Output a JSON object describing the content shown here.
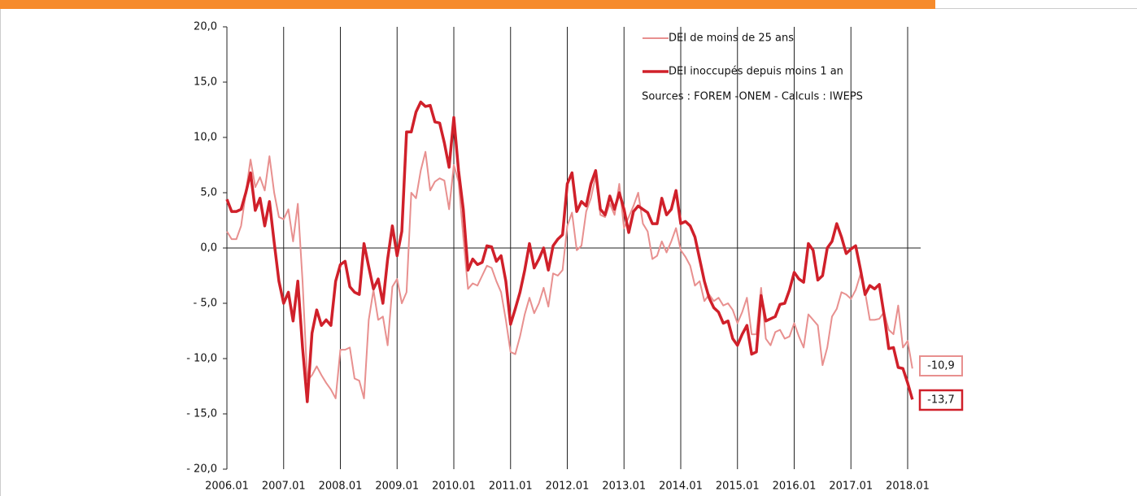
{
  "chart_data": {
    "type": "line",
    "categories": [
      "2006.01",
      null,
      null,
      null,
      null,
      null,
      null,
      null,
      null,
      null,
      null,
      null,
      "2007.01",
      null,
      null,
      null,
      null,
      null,
      null,
      null,
      null,
      null,
      null,
      null,
      "2008.01",
      null,
      null,
      null,
      null,
      null,
      null,
      null,
      null,
      null,
      null,
      null,
      "2009.01",
      null,
      null,
      null,
      null,
      null,
      null,
      null,
      null,
      null,
      null,
      null,
      "2010.01",
      null,
      null,
      null,
      null,
      null,
      null,
      null,
      null,
      null,
      null,
      null,
      "2011.01",
      null,
      null,
      null,
      null,
      null,
      null,
      null,
      null,
      null,
      null,
      null,
      "2012.01",
      null,
      null,
      null,
      null,
      null,
      null,
      null,
      null,
      null,
      null,
      null,
      "2013.01",
      null,
      null,
      null,
      null,
      null,
      null,
      null,
      null,
      null,
      null,
      null,
      "2014.01",
      null,
      null,
      null,
      null,
      null,
      null,
      null,
      null,
      null,
      null,
      null,
      "2015.01",
      null,
      null,
      null,
      null,
      null,
      null,
      null,
      null,
      null,
      null,
      null,
      "2016.01",
      null,
      null,
      null,
      null,
      null,
      null,
      null,
      null,
      null,
      null,
      null,
      "2017.01",
      null,
      null,
      null,
      null,
      null,
      null,
      null,
      null,
      null,
      null,
      null,
      "2018.01",
      null
    ],
    "series": [
      {
        "name": "DEI de moins de 25 ans",
        "color": "#e8908f",
        "width": 2,
        "values": [
          1.5,
          0.8,
          0.8,
          2.0,
          5.0,
          8.0,
          5.5,
          6.4,
          5.2,
          8.3,
          5.0,
          2.8,
          2.6,
          3.5,
          0.6,
          4.0,
          -3.0,
          -12.0,
          -11.5,
          -10.7,
          -11.5,
          -12.2,
          -12.8,
          -13.6,
          -9.2,
          -9.2,
          -9.0,
          -11.8,
          -12.0,
          -13.6,
          -6.5,
          -3.8,
          -6.5,
          -6.2,
          -8.8,
          -3.5,
          -2.8,
          -5.0,
          -4.0,
          5.0,
          4.5,
          7.0,
          8.7,
          5.2,
          6.0,
          6.3,
          6.1,
          3.5,
          7.5,
          6.0,
          1.0,
          -3.7,
          -3.2,
          -3.4,
          -2.5,
          -1.6,
          -1.8,
          -3.0,
          -4.0,
          -6.5,
          -9.4,
          -9.6,
          -8.0,
          -6.0,
          -4.5,
          -5.9,
          -5.0,
          -3.6,
          -5.3,
          -2.3,
          -2.5,
          -2.0,
          2.0,
          3.2,
          -0.2,
          0.2,
          3.3,
          4.5,
          6.5,
          3.0,
          2.8,
          4.0,
          3.0,
          5.8,
          1.8,
          2.8,
          3.8,
          5.0,
          2.2,
          1.5,
          -1.0,
          -0.7,
          0.6,
          -0.4,
          0.6,
          1.8,
          -0.2,
          -0.8,
          -1.6,
          -3.4,
          -3.0,
          -4.8,
          -4.2,
          -4.8,
          -4.5,
          -5.2,
          -5.0,
          -5.6,
          -6.8,
          -5.8,
          -4.5,
          -7.8,
          -7.8,
          -3.6,
          -8.2,
          -8.8,
          -7.6,
          -7.4,
          -8.2,
          -8.0,
          -6.8,
          -8.0,
          -9.0,
          -6.0,
          -6.5,
          -7.0,
          -10.6,
          -9.0,
          -6.2,
          -5.5,
          -4.0,
          -4.2,
          -4.6,
          -3.8,
          -2.4,
          -4.0,
          -6.5,
          -6.5,
          -6.4,
          -5.8,
          -7.4,
          -7.8,
          -5.2,
          -9.0,
          -8.4,
          -10.9
        ],
        "value_labels": [
          null,
          null,
          null,
          null,
          null,
          null,
          null,
          null,
          null,
          null,
          null,
          null,
          null,
          null,
          null,
          null,
          null,
          null,
          null,
          null,
          null,
          null,
          null,
          null,
          null,
          null,
          null,
          null,
          null,
          null,
          null,
          null,
          null,
          null,
          null,
          null,
          null,
          null,
          null,
          null,
          null,
          null,
          null,
          null,
          null,
          null,
          null,
          null,
          null,
          null,
          null,
          null,
          null,
          null,
          null,
          null,
          null,
          null,
          null,
          null,
          null,
          null,
          null,
          null,
          null,
          null,
          null,
          null,
          null,
          null,
          null,
          null,
          null,
          null,
          null,
          null,
          null,
          null,
          null,
          null,
          null,
          null,
          null,
          null,
          null,
          null,
          null,
          null,
          null,
          null,
          null,
          null,
          null,
          null,
          null,
          null,
          null,
          null,
          null,
          null,
          null,
          null,
          null,
          null,
          null,
          null,
          null,
          null,
          null,
          null,
          null,
          null,
          null,
          null,
          null,
          null,
          null,
          null,
          null,
          null,
          null,
          null,
          null,
          null,
          null,
          null,
          null,
          null,
          null,
          null,
          null,
          null,
          null,
          null,
          null,
          null,
          null,
          null,
          null,
          null,
          null,
          null,
          null,
          null,
          null,
          "-10,9"
        ]
      },
      {
        "name": "DEI inoccupés depuis moins 1 an",
        "color": "#d0202a",
        "width": 3.5,
        "values": [
          4.4,
          3.3,
          3.3,
          3.5,
          5.0,
          6.8,
          3.4,
          4.5,
          2.0,
          4.2,
          0.5,
          -3.0,
          -5.0,
          -4.0,
          -6.6,
          -3.0,
          -9.0,
          -13.9,
          -7.7,
          -5.6,
          -7.0,
          -6.5,
          -7.0,
          -3.0,
          -1.5,
          -1.2,
          -3.5,
          -4.0,
          -4.2,
          0.4,
          -1.7,
          -3.7,
          -2.8,
          -5.0,
          -1.0,
          2.0,
          -0.7,
          1.5,
          10.5,
          10.5,
          12.3,
          13.2,
          12.8,
          12.9,
          11.4,
          11.3,
          9.5,
          7.3,
          11.8,
          7.0,
          3.5,
          -2.0,
          -1.0,
          -1.5,
          -1.3,
          0.2,
          0.1,
          -1.2,
          -0.7,
          -3.0,
          -6.9,
          -5.5,
          -4.0,
          -2.0,
          0.4,
          -1.8,
          -1.0,
          0.0,
          -2.0,
          0.2,
          0.8,
          1.2,
          5.8,
          6.8,
          3.3,
          4.2,
          3.8,
          5.8,
          7.0,
          3.5,
          3.0,
          4.7,
          3.5,
          5.0,
          3.5,
          1.4,
          3.3,
          3.8,
          3.5,
          3.2,
          2.2,
          2.2,
          4.5,
          3.0,
          3.5,
          5.2,
          2.2,
          2.4,
          2.0,
          1.0,
          -1.0,
          -3.0,
          -4.5,
          -5.4,
          -5.8,
          -6.8,
          -6.6,
          -8.2,
          -8.8,
          -7.8,
          -7.0,
          -9.6,
          -9.4,
          -4.3,
          -6.6,
          -6.4,
          -6.2,
          -5.1,
          -5.0,
          -3.8,
          -2.2,
          -2.8,
          -3.1,
          0.4,
          -0.2,
          -2.9,
          -2.5,
          0.0,
          0.6,
          2.2,
          1.0,
          -0.5,
          -0.1,
          0.2,
          -1.9,
          -4.2,
          -3.4,
          -3.7,
          -3.3,
          -6.0,
          -9.1,
          -9.0,
          -10.8,
          -10.9,
          -12.2,
          -13.7
        ],
        "value_labels": [
          null,
          null,
          null,
          null,
          null,
          null,
          null,
          null,
          null,
          null,
          null,
          null,
          null,
          null,
          null,
          null,
          null,
          null,
          null,
          null,
          null,
          null,
          null,
          null,
          null,
          null,
          null,
          null,
          null,
          null,
          null,
          null,
          null,
          null,
          null,
          null,
          null,
          null,
          null,
          null,
          null,
          null,
          null,
          null,
          null,
          null,
          null,
          null,
          null,
          null,
          null,
          null,
          null,
          null,
          null,
          null,
          null,
          null,
          null,
          null,
          null,
          null,
          null,
          null,
          null,
          null,
          null,
          null,
          null,
          null,
          null,
          null,
          null,
          null,
          null,
          null,
          null,
          null,
          null,
          null,
          null,
          null,
          null,
          null,
          null,
          null,
          null,
          null,
          null,
          null,
          null,
          null,
          null,
          null,
          null,
          null,
          null,
          null,
          null,
          null,
          null,
          null,
          null,
          null,
          null,
          null,
          null,
          null,
          null,
          null,
          null,
          null,
          null,
          null,
          null,
          null,
          null,
          null,
          null,
          null,
          null,
          null,
          null,
          null,
          null,
          null,
          null,
          null,
          null,
          null,
          null,
          null,
          null,
          null,
          null,
          null,
          null,
          null,
          null,
          null,
          null,
          null,
          null,
          null,
          null,
          "-13,7"
        ]
      }
    ],
    "annotations": [
      "Sources : FOREM -ONEM - Calculs : IWEPS"
    ],
    "ylim": [
      -20,
      20
    ],
    "yticks": [
      {
        "value": -20,
        "label": "- 20,0"
      },
      {
        "value": -15,
        "label": "- 15,0"
      },
      {
        "value": -10,
        "label": "- 10,0"
      },
      {
        "value": -5,
        "label": "- 5,0"
      },
      {
        "value": 0,
        "label": "0,0"
      },
      {
        "value": 5,
        "label": "5,0"
      },
      {
        "value": 10,
        "label": "10,0"
      },
      {
        "value": 15,
        "label": "15,0"
      },
      {
        "value": 20,
        "label": "20,0"
      }
    ],
    "grid": true
  }
}
